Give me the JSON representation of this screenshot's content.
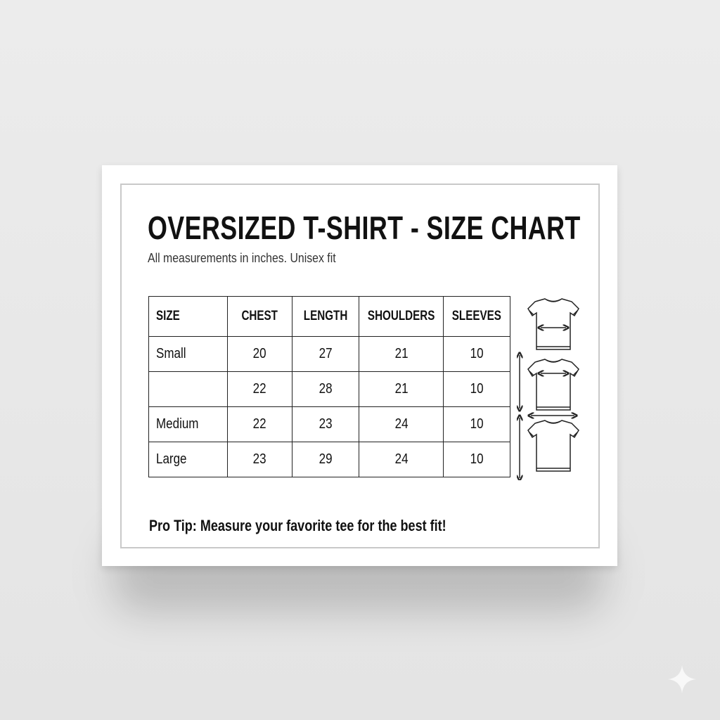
{
  "title": "OVERSIZED T-SHIRT - SIZE CHART",
  "subtitle": "All measurements in inches. Unisex fit",
  "table": {
    "headers": [
      "SIZE",
      "CHEST",
      "LENGTH",
      "SHOULDERS",
      "SLEEVES"
    ],
    "rows": [
      [
        "Small",
        "20",
        "27",
        "21",
        "10"
      ],
      [
        "",
        "22",
        "28",
        "21",
        "10"
      ],
      [
        "Medium",
        "22",
        "23",
        "24",
        "10"
      ],
      [
        "Large",
        "23",
        "29",
        "24",
        "10"
      ]
    ]
  },
  "tip": "Pro Tip: Measure your favorite tee for the best fit!",
  "icons": [
    "tshirt-chest-icon",
    "tshirt-length-shoulder-icon",
    "tshirt-length-icon"
  ]
}
